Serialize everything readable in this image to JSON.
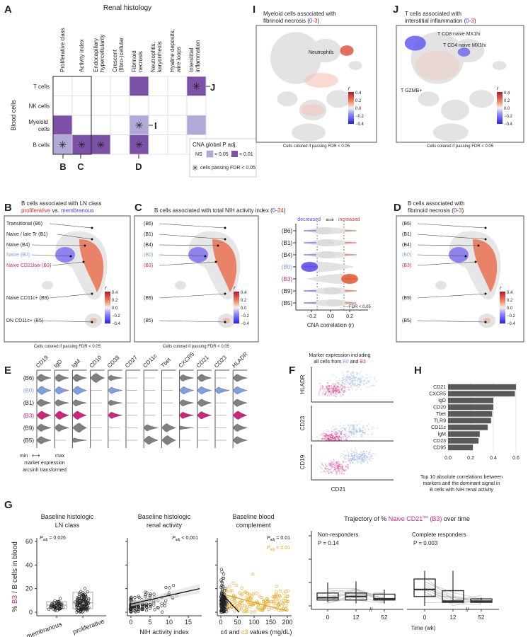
{
  "colors": {
    "sig_strong": "#7b52a8",
    "sig_weak": "#b3a9d8",
    "b0_blue": "#7f9fe0",
    "b3_magenta": "#d0237e",
    "c3_orange": "#e8a317",
    "pos_red": "#d73027",
    "neg_blue": "#4b3cf0",
    "violin_grey": "#7f7f7f"
  },
  "panel_labels": {
    "A": "A",
    "B": "B",
    "C": "C",
    "D": "D",
    "E": "E",
    "F": "F",
    "G": "G",
    "H": "H",
    "I": "I",
    "J": "J"
  },
  "panelA": {
    "title": "Renal histology",
    "row_axis_label": "Blood cells",
    "callouts": {
      "B": "B",
      "C": "C",
      "D": "D",
      "I": "I",
      "J": "J"
    },
    "legend": {
      "title": "CNA global P adj.",
      "ns": "NS",
      "weak": "< 0.05",
      "strong": "< 0.01",
      "star": "cells passing FDR < 0.05"
    }
  },
  "panelI": {
    "title_line1": "Myeloid cells associated with",
    "title_line2_pre": "fibrinoid necrosis (",
    "range_lo": "0",
    "range_sep": "-",
    "range_hi": "3",
    "title_close": ")",
    "annotation": "Neutrophils",
    "footer": "Cells colored if passing FDR < 0.05"
  },
  "panelJ": {
    "title_line1": "T cells associated with",
    "title_line2_pre": "interstitial inflammation (",
    "range_lo": "0",
    "range_sep": "-",
    "range_hi": "3",
    "title_close": ")",
    "annotations": [
      "T CD8 naive MX1hi",
      "T CD4 naive MX1hi",
      "T GZMB+"
    ],
    "footer": "Cells colored if passing FDR < 0.05"
  },
  "colorbar": {
    "label": "r",
    "ticks": [
      "0.4",
      "0.2",
      "0.0",
      "−0.2",
      "−0.4"
    ]
  },
  "panelB": {
    "title_line1": "B cells associated with LN class",
    "title_red": "proliferative",
    "title_mid": " vs. ",
    "title_blue": "membranous",
    "labels": [
      "Transitional (B6)",
      "Naive / late Tr (B1)",
      "Naive (B4)",
      "Naive (B0)",
      "Naive CD21low (B3)",
      "Naive CD11c+ (B9)",
      "DN CD11c+ (B5)"
    ],
    "footer": "Cells colored if passing FDR < 0.05"
  },
  "panelC": {
    "title_pre": "B cells associated with total NIH activity index (",
    "range_lo": "0",
    "range_sep": "-",
    "range_hi": "24",
    "title_close": ")",
    "labels": [
      "(B6)",
      "(B1)",
      "(B4)",
      "(B0)",
      "(B3)",
      "(B9)",
      "(B5)"
    ],
    "footer": "Cells colored if passing FDR < 0.05",
    "violin": {
      "decreased": "decreased",
      "arrow": "⟺",
      "increased": "increased",
      "xlabel": "CNA correlation (r)",
      "fdr_label": "FDR < 0.05",
      "xticks": [
        "−0.2",
        "0.0",
        "0.2"
      ]
    }
  },
  "panelD": {
    "title_line1": "B cells associated with",
    "title_line2_pre": "fibrinoid necrosis (",
    "range_lo": "0",
    "range_sep": "-",
    "range_hi": "3",
    "title_close": ")",
    "labels": [
      "(B6)",
      "(B1)",
      "(B4)",
      "(B0)",
      "(B3)",
      "(B9)",
      "(B5)"
    ],
    "footer": "Cells colored if passing FDR < 0.05"
  },
  "panelE": {
    "markers": [
      "CD19",
      "IgD",
      "IgM",
      "CD10",
      "CD38",
      "CD27",
      "CD11c",
      "Tbet",
      "CXCR5",
      "CD21",
      "CD23",
      "HLADR"
    ],
    "clusters": [
      "(B6)",
      "(B0)",
      "(B1)",
      "(B3)",
      "(B9)",
      "(B5)"
    ],
    "legend_min": "min",
    "legend_max": "max",
    "legend_line2": "marker expression",
    "legend_line3": "arcsinh transformed"
  },
  "panelF": {
    "title_line1": "Marker expression including",
    "title_line2_pre": "all cells from ",
    "b0": "B0",
    "and": " and ",
    "b3": "B3",
    "ylabels": [
      "HLADR",
      "CD23",
      "CD19"
    ],
    "xlabel": "CD21"
  },
  "panelG": {
    "ylabel_pre": "% ",
    "ylabel_b3": "B3",
    "ylabel_post": " / B cells in blood",
    "sub1": {
      "title1": "Baseline histologic",
      "title2": "LN class",
      "p": "= 0.026",
      "cats": [
        "membranous",
        "proliferative"
      ]
    },
    "sub2": {
      "title1": "Baseline histologic",
      "title2": "renal activity",
      "p": "< 0.001",
      "xlabel": "NIH activity index",
      "xticks": [
        "0",
        "5",
        "10",
        "15"
      ]
    },
    "sub3": {
      "title1": "Baseline blood",
      "title2": "complement",
      "p_c4": "= 0.01",
      "p_c3": "= 0.01",
      "xlabel_c4": "c4",
      "xlabel_and": " and ",
      "xlabel_c3": "c3",
      "xlabel_post": " values (mg/dL)",
      "xticks": [
        "0",
        "50",
        "100",
        "150",
        "200"
      ]
    },
    "yticks": [
      "0",
      "20",
      "40",
      "60"
    ],
    "p_symbol": "P",
    "p_sub": "adj",
    "trajectory": {
      "title_pre": "Trajectory of % ",
      "title_pink": "Naive CD21",
      "title_sup": "low",
      "title_pink2": " (B3)",
      "title_post": " over time",
      "groups": [
        {
          "name": "Non-responders",
          "p": "P = 0.14"
        },
        {
          "name": "Complete responders",
          "p": "P = 0.003"
        }
      ],
      "xticks": [
        "0",
        "12",
        "52"
      ],
      "xlabel": "Time (wk)"
    }
  },
  "panelH": {
    "caption": [
      "Top 10 absolute correlations between",
      "markers and the dominant signal in",
      "B cells with NIH renal activity"
    ],
    "xticks": [
      "0.0",
      "0.2",
      "0.4",
      "0.6"
    ]
  },
  "chart_data": [
    {
      "type": "heatmap",
      "panel": "A",
      "title": "Renal histology",
      "columns": [
        "Proliferative class",
        "Activity index",
        "Endocapillary hypercellularity",
        "Crescent (fibro-)cellular",
        "Fibrinoid necrosis",
        "Neutrophils, karyorrhexis",
        "Hyaline deposits, wire loops",
        "Interstitial inflammation"
      ],
      "rows": [
        "T cells",
        "NK cells",
        "Myeloid cells",
        "B cells"
      ],
      "levels": [
        [
          0,
          0,
          0,
          0,
          2,
          0,
          0,
          2
        ],
        [
          0,
          0,
          0,
          0,
          0,
          0,
          0,
          0
        ],
        [
          2,
          0,
          0,
          0,
          1,
          0,
          0,
          1
        ],
        [
          1,
          2,
          2,
          0,
          2,
          0,
          0,
          0
        ]
      ],
      "level_legend": {
        "0": "NS",
        "1": "< 0.05",
        "2": "< 0.01"
      },
      "fdr_star": [
        [
          0,
          0,
          0,
          0,
          0,
          0,
          0,
          1
        ],
        [
          0,
          0,
          0,
          0,
          0,
          0,
          0,
          0
        ],
        [
          0,
          0,
          0,
          0,
          1,
          0,
          0,
          0
        ],
        [
          1,
          1,
          1,
          0,
          1,
          0,
          0,
          0
        ]
      ]
    },
    {
      "type": "bar",
      "panel": "H",
      "orientation": "horizontal",
      "categories": [
        "CD21",
        "CXCR5",
        "IgD",
        "CD20",
        "Tbet",
        "TLR9",
        "CD11c",
        "IgM",
        "CD23",
        "CD95"
      ],
      "values": [
        0.6,
        0.59,
        0.4,
        0.4,
        0.39,
        0.38,
        0.35,
        0.28,
        0.27,
        0.22
      ],
      "xlim": [
        0,
        0.65
      ],
      "grid": true
    },
    {
      "type": "violin",
      "panel": "C",
      "clusters": [
        "(B6)",
        "(B1)",
        "(B4)",
        "(B0)",
        "(B3)",
        "(B9)",
        "(B5)"
      ],
      "median_r": [
        -0.08,
        -0.05,
        -0.04,
        -0.22,
        0.2,
        0.02,
        0.04
      ],
      "xlim": [
        -0.3,
        0.3
      ],
      "fdr_threshold": [
        -0.14,
        0.14
      ]
    },
    {
      "type": "box",
      "panel": "G-LN class",
      "categories": [
        "membranous",
        "proliferative"
      ],
      "q1": [
        3,
        3
      ],
      "median": [
        6,
        8
      ],
      "q3": [
        9,
        17
      ],
      "whisker_lo": [
        0,
        0
      ],
      "whisker_hi": [
        13,
        30
      ],
      "ylim": [
        0,
        60
      ]
    },
    {
      "type": "scatter",
      "panel": "G-renal activity",
      "trend": {
        "x": [
          0,
          18
        ],
        "y": [
          7,
          20
        ]
      },
      "xlim": [
        0,
        18
      ],
      "ylim": [
        0,
        60
      ]
    },
    {
      "type": "scatter",
      "panel": "G-complement",
      "trend_c4": {
        "x": [
          5,
          55
        ],
        "y": [
          15,
          0
        ]
      },
      "trend_c3": {
        "x": [
          10,
          200
        ],
        "y": [
          15,
          1
        ]
      },
      "xlim": [
        0,
        210
      ],
      "ylim": [
        0,
        60
      ]
    },
    {
      "type": "box",
      "panel": "G-trajectory",
      "x": [
        "0",
        "12",
        "52"
      ],
      "series": [
        {
          "name": "Non-responders",
          "q1": [
            5,
            5,
            5
          ],
          "median": [
            7,
            8,
            6
          ],
          "q3": [
            11,
            11,
            10
          ],
          "whisker_lo": [
            3,
            2,
            2
          ],
          "whisker_hi": [
            20,
            21,
            14
          ]
        },
        {
          "name": "Complete responders",
          "q1": [
            8,
            3,
            3
          ],
          "median": [
            14,
            4,
            4
          ],
          "q3": [
            23,
            13,
            6
          ],
          "whisker_lo": [
            0,
            3,
            3
          ],
          "whisker_hi": [
            30,
            30,
            7
          ]
        }
      ]
    }
  ],
  "panelE_expression": [
    [
      0.6,
      0.6,
      0.6,
      0.8,
      0.4,
      0.1,
      0.1,
      0.1,
      0.5,
      0.6,
      0.1,
      0.6
    ],
    [
      0.7,
      0.6,
      0.7,
      0.1,
      0.5,
      0.1,
      0.1,
      0.1,
      0.6,
      0.6,
      0.5,
      0.6
    ],
    [
      0.6,
      0.5,
      0.5,
      0.1,
      0.4,
      0.1,
      0.1,
      0.1,
      0.5,
      0.6,
      0.1,
      0.6
    ],
    [
      0.7,
      0.7,
      0.7,
      0.1,
      0.5,
      0.1,
      0.1,
      0.1,
      0.5,
      0.6,
      0.1,
      0.7
    ],
    [
      0.6,
      0.6,
      0.9,
      0.1,
      0.1,
      0.1,
      0.5,
      0.7,
      0.2,
      0.1,
      0.1,
      0.6
    ],
    [
      0.6,
      0.1,
      0.3,
      0.1,
      0.1,
      0.1,
      0.7,
      0.8,
      0.1,
      0.1,
      0.1,
      0.6
    ]
  ]
}
